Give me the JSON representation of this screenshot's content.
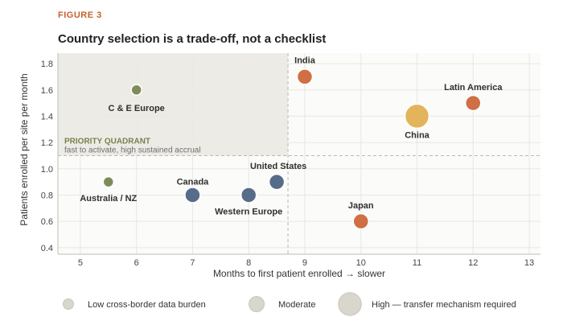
{
  "figure_label": "FIGURE 3",
  "chart_data": {
    "type": "scatter",
    "title": "Country selection is a trade-off, not a checklist",
    "xlabel": "Months to first patient enrolled → slower",
    "ylabel": "Patients enrolled per site per month",
    "xlim": [
      4.6,
      13.2
    ],
    "ylim": [
      0.35,
      1.88
    ],
    "xticks": [
      5,
      6,
      7,
      8,
      9,
      10,
      11,
      12,
      13
    ],
    "yticks": [
      0.4,
      0.6,
      0.8,
      1.0,
      1.2,
      1.4,
      1.6,
      1.8
    ],
    "grid": true,
    "quadrant": {
      "title": "PRIORITY QUADRANT",
      "subtitle": "fast to activate, high sustained accrual",
      "x_max": 8.7,
      "y_min": 1.1
    },
    "points": [
      {
        "label": "C & E Europe",
        "x": 6,
        "y": 1.6,
        "burden": "low",
        "color": "#7f8c5a"
      },
      {
        "label": "Australia / NZ",
        "x": 5.5,
        "y": 0.9,
        "burden": "low",
        "color": "#7f8c5a"
      },
      {
        "label": "Canada",
        "x": 7,
        "y": 0.8,
        "burden": "moderate",
        "color": "#566c88"
      },
      {
        "label": "Western Europe",
        "x": 8,
        "y": 0.8,
        "burden": "moderate",
        "color": "#566c88"
      },
      {
        "label": "United States",
        "x": 8.5,
        "y": 0.9,
        "burden": "moderate",
        "color": "#566c88"
      },
      {
        "label": "India",
        "x": 9,
        "y": 1.7,
        "burden": "moderate",
        "color": "#d06f43"
      },
      {
        "label": "Japan",
        "x": 10,
        "y": 0.6,
        "burden": "moderate",
        "color": "#d06f43"
      },
      {
        "label": "China",
        "x": 11,
        "y": 1.4,
        "burden": "high",
        "color": "#e3b45c"
      },
      {
        "label": "Latin America",
        "x": 12,
        "y": 1.5,
        "burden": "moderate",
        "color": "#d06f43"
      }
    ],
    "legend": [
      {
        "key": "low",
        "label": "Low cross-border data burden"
      },
      {
        "key": "moderate",
        "label": "Moderate"
      },
      {
        "key": "high",
        "label": "High — transfer mechanism required"
      }
    ]
  }
}
